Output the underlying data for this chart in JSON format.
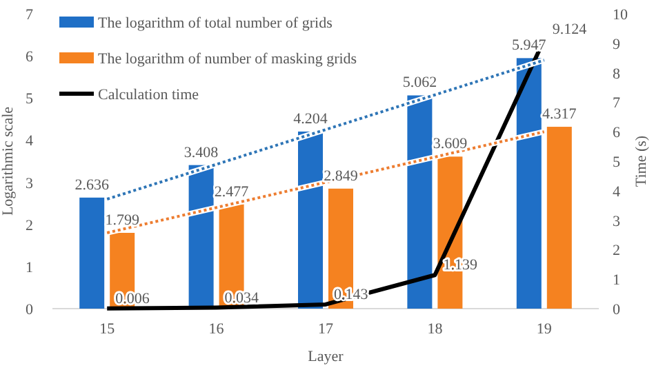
{
  "chart_data": {
    "type": "bar",
    "xlabel": "Layer",
    "ylabel": "Logarithmic scale",
    "y2label": "Time (s)",
    "categories": [
      "15",
      "16",
      "17",
      "18",
      "19"
    ],
    "series": [
      {
        "name": "The logarithm of total number of grids",
        "color": "#1f6fc6",
        "values": [
          2.636,
          3.408,
          4.204,
          5.062,
          5.947
        ],
        "value_labels": [
          "2.636",
          "3.408",
          "4.204",
          "5.062",
          "5.947"
        ]
      },
      {
        "name": "The logarithm of number of masking grids",
        "color": "#f58220",
        "values": [
          1.799,
          2.477,
          2.849,
          3.609,
          4.317
        ],
        "value_labels": [
          "1.799",
          "2.477",
          "2.849",
          "3.609",
          "4.317"
        ]
      },
      {
        "name": "Calculation time",
        "type": "line",
        "axis": "y2",
        "color": "#000000",
        "values": [
          0.006,
          0.034,
          0.143,
          1.139,
          9.124
        ],
        "value_labels": [
          "0.006",
          "0.034",
          "0.143",
          "1.139",
          "9.124"
        ]
      },
      {
        "type": "line",
        "line_style": "dotted",
        "color": "#2e75b6",
        "x": [
          "15",
          "19"
        ],
        "values": [
          2.6,
          5.9
        ]
      },
      {
        "type": "line",
        "line_style": "dotted",
        "color": "#ed7d31",
        "x": [
          "15",
          "19"
        ],
        "values": [
          1.8,
          4.2
        ]
      }
    ],
    "ylim": [
      0,
      7
    ],
    "yticks": [
      0,
      1,
      2,
      3,
      4,
      5,
      6,
      7
    ],
    "y2lim": [
      0,
      10
    ],
    "y2ticks": [
      0,
      1,
      2,
      3,
      4,
      5,
      6,
      7,
      8,
      9,
      10
    ],
    "grid": false,
    "legend": "top left",
    "marker": "none"
  }
}
